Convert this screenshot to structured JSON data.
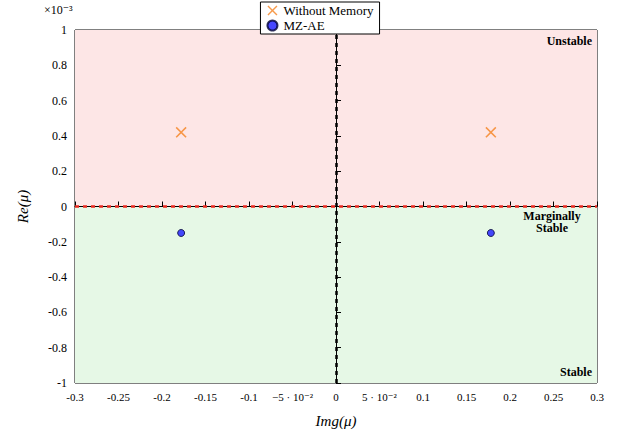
{
  "chart_data": {
    "type": "scatter",
    "x_label": "Img(μ)",
    "y_label": "Re(μ)",
    "y_scale_label": "×10⁻³",
    "xlim": [
      -0.3,
      0.3
    ],
    "xticks": [
      -0.3,
      -0.25,
      -0.2,
      -0.15,
      -0.1,
      {
        "value": -0.05,
        "label": "−5 · 10⁻²"
      },
      0,
      {
        "value": 0.05,
        "label": "5 · 10⁻²"
      },
      0.1,
      0.15,
      0.2,
      0.25,
      0.3
    ],
    "ylim": [
      -1,
      1
    ],
    "yticks": [
      -1,
      -0.8,
      -0.6,
      -0.4,
      -0.2,
      0,
      0.2,
      0.4,
      0.6,
      0.8,
      1
    ],
    "grid": false,
    "legend": "top",
    "series": [
      {
        "name": "Without Memory",
        "color": "#f5821f",
        "marker": "x",
        "x": [
          -0.178,
          0.178
        ],
        "values": [
          0.42,
          0.42
        ]
      },
      {
        "name": "MZ-AE",
        "color": "#1a1aff",
        "marker": "circle",
        "x": [
          -0.178,
          0.178
        ],
        "values": [
          -0.15,
          -0.15
        ]
      }
    ],
    "regions": [
      {
        "label": "Unstable",
        "y_range": [
          0,
          1
        ],
        "color": "#fde6e6"
      },
      {
        "label": "Stable",
        "y_range": [
          -1,
          0
        ],
        "color": "#e6f8e6"
      }
    ],
    "reference_lines": [
      {
        "axis": "y",
        "value": 0,
        "label": "Marginally\nStable",
        "color": "#e8281e"
      },
      {
        "axis": "x",
        "value": 0,
        "color": "#000000"
      }
    ]
  }
}
